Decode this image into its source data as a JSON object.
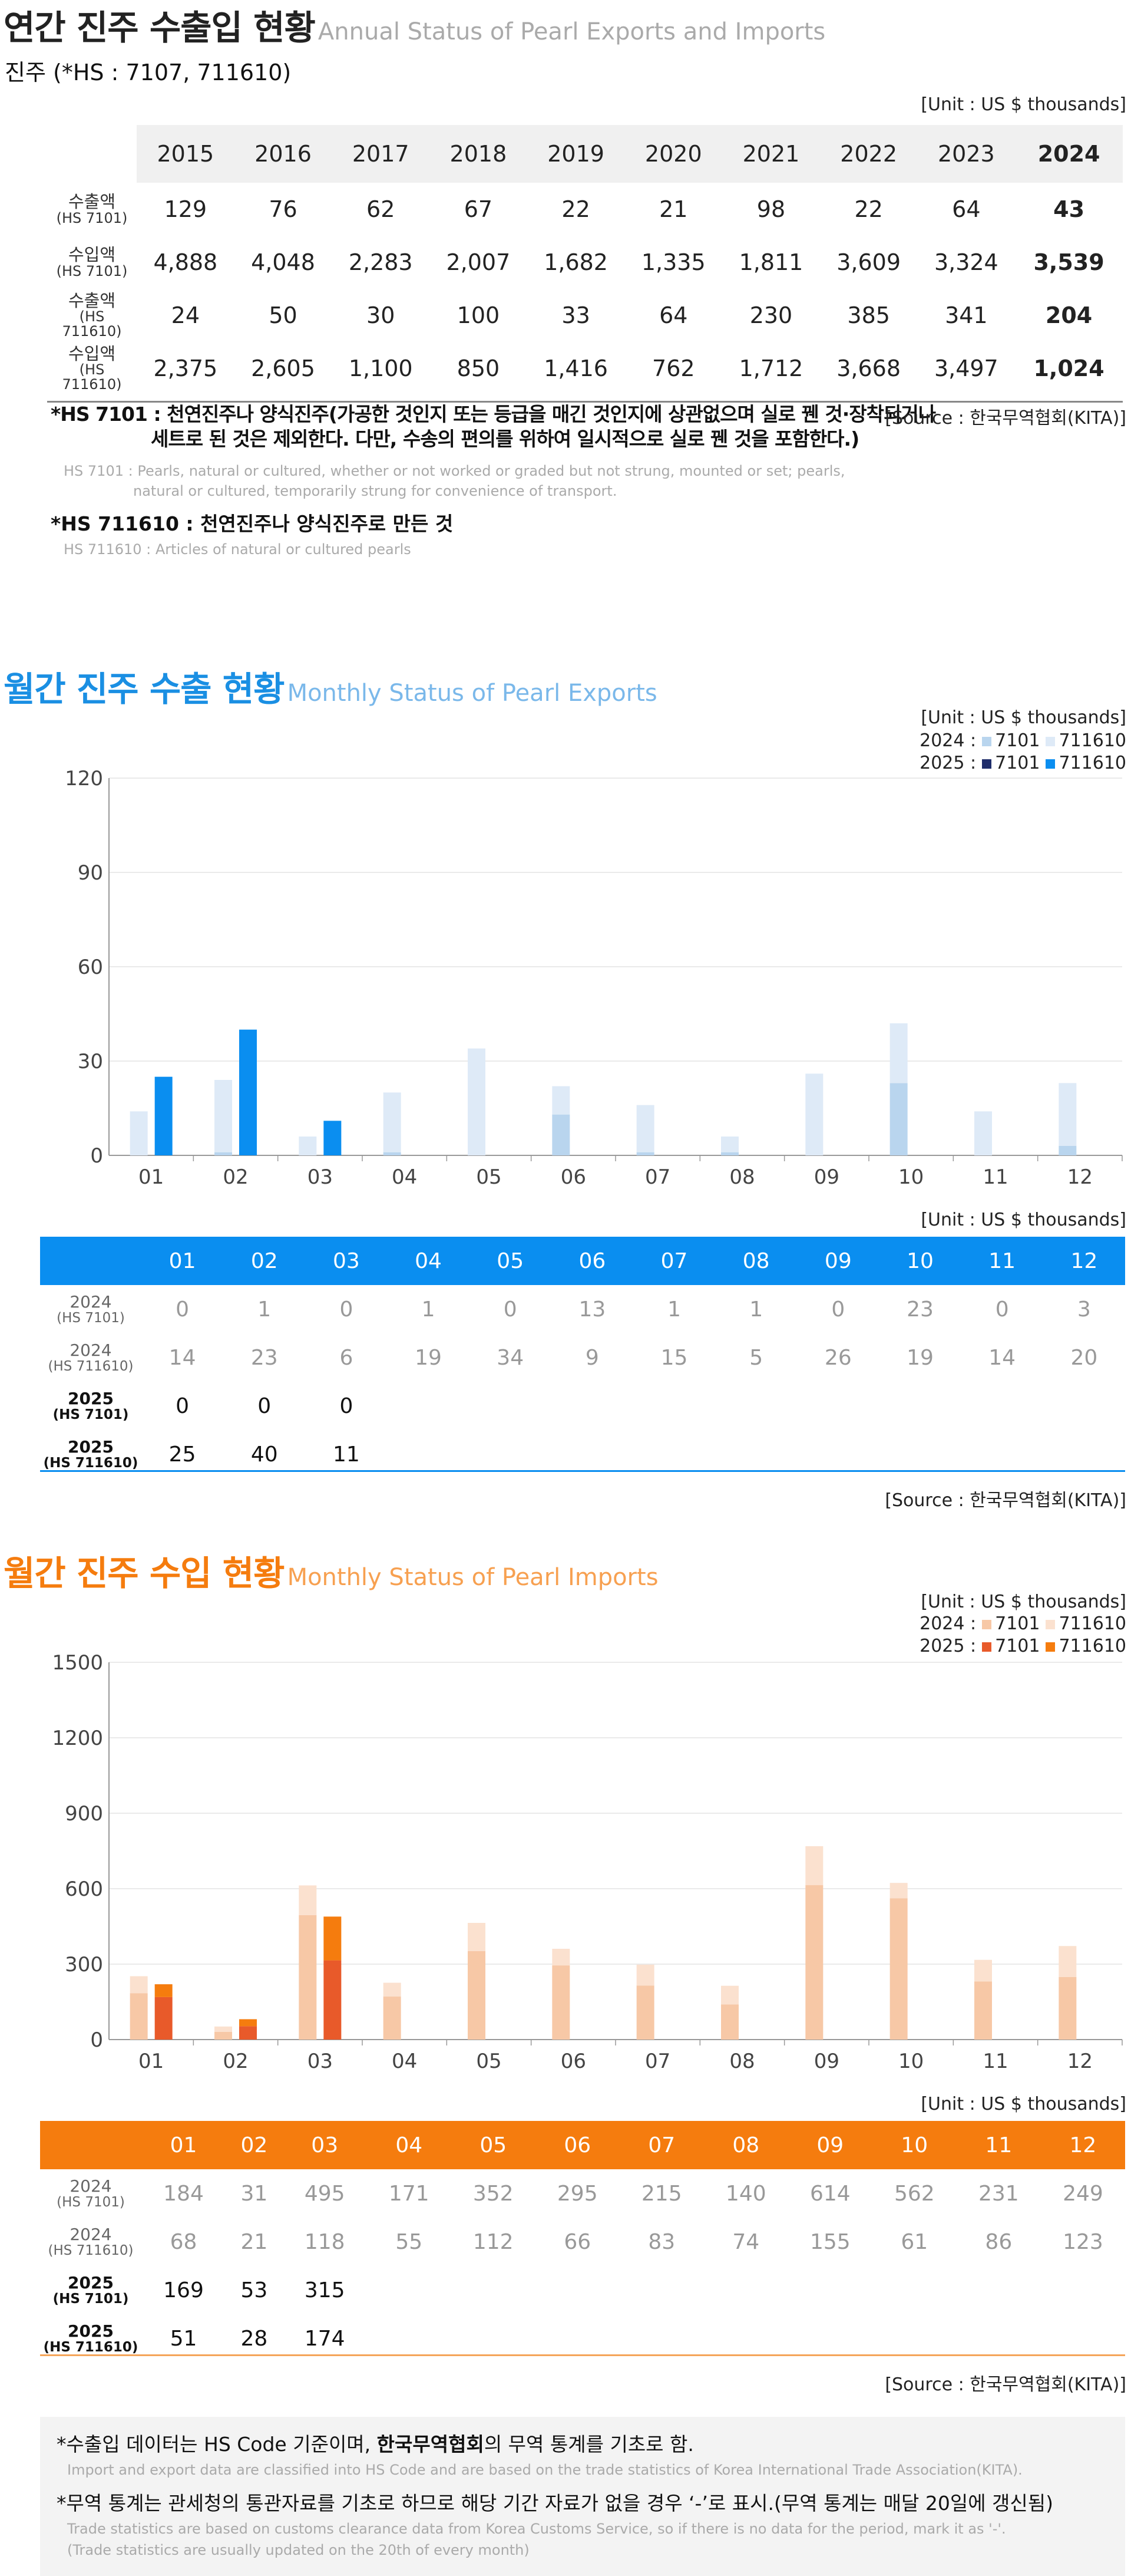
{
  "annual": {
    "title_ko": "연간 진주 수출입 현황",
    "title_en": "Annual Status of Pearl Exports and Imports",
    "subtitle": "진주 (*HS : 7107, 711610)",
    "unit": "[Unit : US $ thousands]",
    "years": [
      "2015",
      "2016",
      "2017",
      "2018",
      "2019",
      "2020",
      "2021",
      "2022",
      "2023",
      "2024"
    ],
    "rows": [
      {
        "label": "수출액",
        "code": "(HS 7101)",
        "values": [
          "129",
          "76",
          "62",
          "67",
          "22",
          "21",
          "98",
          "22",
          "64",
          "43"
        ]
      },
      {
        "label": "수입액",
        "code": "(HS 7101)",
        "values": [
          "4,888",
          "4,048",
          "2,283",
          "2,007",
          "1,682",
          "1,335",
          "1,811",
          "3,609",
          "3,324",
          "3,539"
        ]
      },
      {
        "label": "수출액",
        "code": "(HS 711610)",
        "values": [
          "24",
          "50",
          "30",
          "100",
          "33",
          "64",
          "230",
          "385",
          "341",
          "204"
        ]
      },
      {
        "label": "수입액",
        "code": "(HS 711610)",
        "values": [
          "2,375",
          "2,605",
          "1,100",
          "850",
          "1,416",
          "762",
          "1,712",
          "3,668",
          "3,497",
          "1,024"
        ]
      }
    ],
    "note1_ko": "*HS 7101 : 천연진주나 양식진주(가공한 것인지 또는 등급을 매긴 것인지에 상관없으며 실로 꿴 것·장착되거나",
    "note1_ko2": "세트로 된 것은 제외한다. 다만, 수송의 편의를 위하여 일시적으로 실로 꿴 것을 포함한다.)",
    "note1_en": "HS 7101 : Pearls, natural or cultured, whether or not worked or graded but not strung, mounted or set; pearls,",
    "note1_en2": "natural or cultured, temporarily strung for convenience of transport.",
    "note2_ko": "*HS 711610 : 천연진주나 양식진주로 만든 것",
    "note2_en": "HS 711610 : Articles of natural or cultured pearls",
    "source": "[Source : 한국무역협회(KITA)]"
  },
  "exports": {
    "title_ko": "월간 진주 수출 현황",
    "title_en": "Monthly Status of Pearl Exports",
    "unit": "[Unit : US $ thousands]",
    "legend_2024": "2024 :",
    "legend_2025": "2025 :",
    "legend_7101": "7101",
    "legend_711610": "711610",
    "months": [
      "01",
      "02",
      "03",
      "04",
      "05",
      "06",
      "07",
      "08",
      "09",
      "10",
      "11",
      "12"
    ],
    "rows": [
      {
        "year": "2024",
        "code": "(HS 7101)",
        "values": [
          "0",
          "1",
          "0",
          "1",
          "0",
          "13",
          "1",
          "1",
          "0",
          "23",
          "0",
          "3"
        ]
      },
      {
        "year": "2024",
        "code": "(HS 711610)",
        "values": [
          "14",
          "23",
          "6",
          "19",
          "34",
          "9",
          "15",
          "5",
          "26",
          "19",
          "14",
          "20"
        ]
      },
      {
        "year": "2025",
        "code": "(HS 7101)",
        "values": [
          "0",
          "0",
          "0",
          "",
          "",
          "",
          "",
          "",
          "",
          "",
          "",
          ""
        ]
      },
      {
        "year": "2025",
        "code": "(HS 711610)",
        "values": [
          "25",
          "40",
          "11",
          "",
          "",
          "",
          "",
          "",
          "",
          "",
          "",
          ""
        ]
      }
    ],
    "source": "[Source : 한국무역협회(KITA)]"
  },
  "imports": {
    "title_ko": "월간 진주 수입 현황",
    "title_en": "Monthly Status of Pearl Imports",
    "unit": "[Unit : US $ thousands]",
    "legend_2024": "2024 :",
    "legend_2025": "2025 :",
    "legend_7101": "7101",
    "legend_711610": "711610",
    "months": [
      "01",
      "02",
      "03",
      "04",
      "05",
      "06",
      "07",
      "08",
      "09",
      "10",
      "11",
      "12"
    ],
    "rows": [
      {
        "year": "2024",
        "code": "(HS 7101)",
        "values": [
          "184",
          "31",
          "495",
          "171",
          "352",
          "295",
          "215",
          "140",
          "614",
          "562",
          "231",
          "249"
        ]
      },
      {
        "year": "2024",
        "code": "(HS 711610)",
        "values": [
          "68",
          "21",
          "118",
          "55",
          "112",
          "66",
          "83",
          "74",
          "155",
          "61",
          "86",
          "123"
        ]
      },
      {
        "year": "2025",
        "code": "(HS 7101)",
        "values": [
          "169",
          "53",
          "315",
          "",
          "",
          "",
          "",
          "",
          "",
          "",
          "",
          ""
        ]
      },
      {
        "year": "2025",
        "code": "(HS 711610)",
        "values": [
          "51",
          "28",
          "174",
          "",
          "",
          "",
          "",
          "",
          "",
          "",
          "",
          ""
        ]
      }
    ],
    "source": "[Source : 한국무역협회(KITA)]"
  },
  "chart_data": [
    {
      "type": "bar",
      "stacked": true,
      "categories": [
        "01",
        "02",
        "03",
        "04",
        "05",
        "06",
        "07",
        "08",
        "09",
        "10",
        "11",
        "12"
      ],
      "yticks": [
        "0",
        "30",
        "60",
        "90",
        "120"
      ],
      "ylim": [
        0,
        120
      ],
      "series": [
        {
          "name": "2024 : 7101",
          "group": "2024",
          "values": [
            0,
            1,
            0,
            1,
            0,
            13,
            1,
            1,
            0,
            23,
            0,
            3
          ],
          "color": "#b9d5ee"
        },
        {
          "name": "2024 : 711610",
          "group": "2024",
          "values": [
            14,
            23,
            6,
            19,
            34,
            9,
            15,
            5,
            26,
            19,
            14,
            20
          ],
          "color": "#deeaf7"
        },
        {
          "name": "2025 : 7101",
          "group": "2025",
          "values": [
            0,
            0,
            0,
            null,
            null,
            null,
            null,
            null,
            null,
            null,
            null,
            null
          ],
          "color": "#1f2d6b"
        },
        {
          "name": "2025 : 711610",
          "group": "2025",
          "values": [
            25,
            40,
            11,
            null,
            null,
            null,
            null,
            null,
            null,
            null,
            null,
            null
          ],
          "color": "#0a8ef0"
        }
      ],
      "grid": true,
      "legend": "top-right"
    },
    {
      "type": "bar",
      "stacked": true,
      "categories": [
        "01",
        "02",
        "03",
        "04",
        "05",
        "06",
        "07",
        "08",
        "09",
        "10",
        "11",
        "12"
      ],
      "yticks": [
        "0",
        "300",
        "600",
        "900",
        "1200",
        "1500"
      ],
      "ylim": [
        0,
        1500
      ],
      "series": [
        {
          "name": "2024 : 7101",
          "group": "2024",
          "values": [
            184,
            31,
            495,
            171,
            352,
            295,
            215,
            140,
            614,
            562,
            231,
            249
          ],
          "color": "#f7c8a6"
        },
        {
          "name": "2024 : 711610",
          "group": "2024",
          "values": [
            68,
            21,
            118,
            55,
            112,
            66,
            83,
            74,
            155,
            61,
            86,
            123
          ],
          "color": "#fbe1cf"
        },
        {
          "name": "2025 : 7101",
          "group": "2025",
          "values": [
            169,
            53,
            315,
            null,
            null,
            null,
            null,
            null,
            null,
            null,
            null,
            null
          ],
          "color": "#e85a2a"
        },
        {
          "name": "2025 : 711610",
          "group": "2025",
          "values": [
            51,
            28,
            174,
            null,
            null,
            null,
            null,
            null,
            null,
            null,
            null,
            null
          ],
          "color": "#f57c0e"
        }
      ],
      "grid": true,
      "legend": "top-right"
    }
  ],
  "footer": {
    "line1_ko_pre": "*수출입 데이터는 HS Code 기준이며, ",
    "line1_ko_bold": "한국무역협회",
    "line1_ko_post": "의 무역 통계를 기초로 함.",
    "line1_en": "Import and export data are classified into HS Code and are based on the trade statistics of Korea International  Trade Association(KITA).",
    "line2_ko": "*무역 통계는 관세청의  통관자료를 기초로 하므로 해당 기간 자료가 없을 경우 ‘-’로 표시.(무역 통계는 매달 20일에 갱신됨)",
    "line2_en": "Trade statistics are based on customs clearance data from Korea Customs Service, so if there is no data for the period, mark it as '-'.",
    "line2_en2": "(Trade statistics are usually updated on the 20th of every month)"
  }
}
